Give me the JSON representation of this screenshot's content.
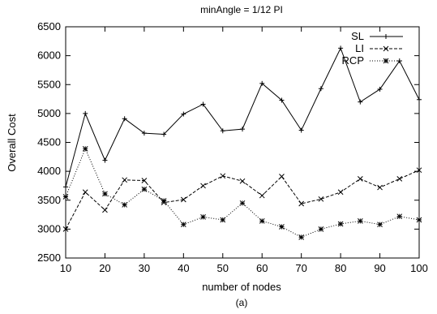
{
  "chart_data": {
    "type": "line",
    "title": "minAngle = 1/12 PI",
    "xlabel": "number of nodes",
    "ylabel": "Overall Cost",
    "caption": "(a)",
    "xlim": [
      10,
      100
    ],
    "ylim": [
      2500,
      6500
    ],
    "xticks": [
      10,
      20,
      30,
      40,
      50,
      60,
      70,
      80,
      90,
      100
    ],
    "yticks": [
      2500,
      3000,
      3500,
      4000,
      4500,
      5000,
      5500,
      6000,
      6500
    ],
    "x": [
      10,
      15,
      20,
      25,
      30,
      35,
      40,
      45,
      50,
      55,
      60,
      65,
      70,
      75,
      80,
      85,
      90,
      95,
      100
    ],
    "legend_position": "top-right",
    "grid": false,
    "series": [
      {
        "name": "SL",
        "style": "solid",
        "marker": "plus",
        "values": [
          3730,
          5000,
          4190,
          4910,
          4660,
          4640,
          4990,
          5160,
          4700,
          4730,
          5520,
          5230,
          4710,
          5430,
          6130,
          5200,
          5420,
          5910,
          5240
        ]
      },
      {
        "name": "LI",
        "style": "dashed",
        "marker": "x",
        "values": [
          3000,
          3640,
          3330,
          3850,
          3840,
          3460,
          3510,
          3750,
          3920,
          3830,
          3580,
          3910,
          3440,
          3520,
          3640,
          3870,
          3720,
          3870,
          4020
        ]
      },
      {
        "name": "RCP",
        "style": "dotted",
        "marker": "star",
        "values": [
          3560,
          4390,
          3610,
          3420,
          3690,
          3490,
          3080,
          3210,
          3160,
          3450,
          3140,
          3040,
          2860,
          3000,
          3090,
          3140,
          3080,
          3220,
          3160
        ]
      }
    ]
  }
}
